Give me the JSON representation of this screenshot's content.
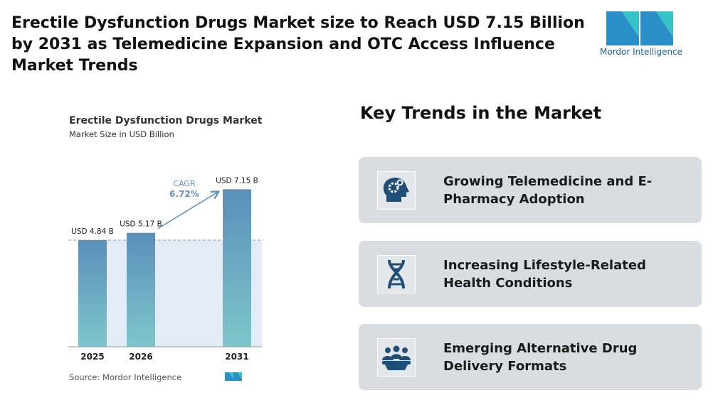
{
  "header": {
    "title": "Erectile Dysfunction Drugs Market size to Reach USD 7.15 Billion by 2031 as Telemedicine Expansion and OTC Access Influence Market Trends",
    "logo_text": "Mordor Intelligence"
  },
  "chart_data": {
    "type": "bar",
    "title": "Erectile Dysfunction Drugs Market",
    "subtitle": "Market Size in USD Billion",
    "categories": [
      "2025",
      "2026",
      "2031"
    ],
    "values": [
      4.84,
      5.17,
      7.15
    ],
    "value_labels": [
      "USD 4.84 B",
      "USD 5.17 B",
      "USD 7.15 B"
    ],
    "annotations": {
      "cagr_label": "CAGR",
      "cagr_value": "6.72%"
    },
    "colors": {
      "top": "#5a8fba",
      "bottom": "#7ec6ca"
    },
    "source": "Source: Mordor Intelligence"
  },
  "trends": {
    "heading": "Key Trends in the Market",
    "items": [
      "Growing Telemedicine and E-Pharmacy Adoption",
      "Increasing Lifestyle-Related Health Conditions",
      "Emerging Alternative Drug Delivery Formats"
    ]
  }
}
